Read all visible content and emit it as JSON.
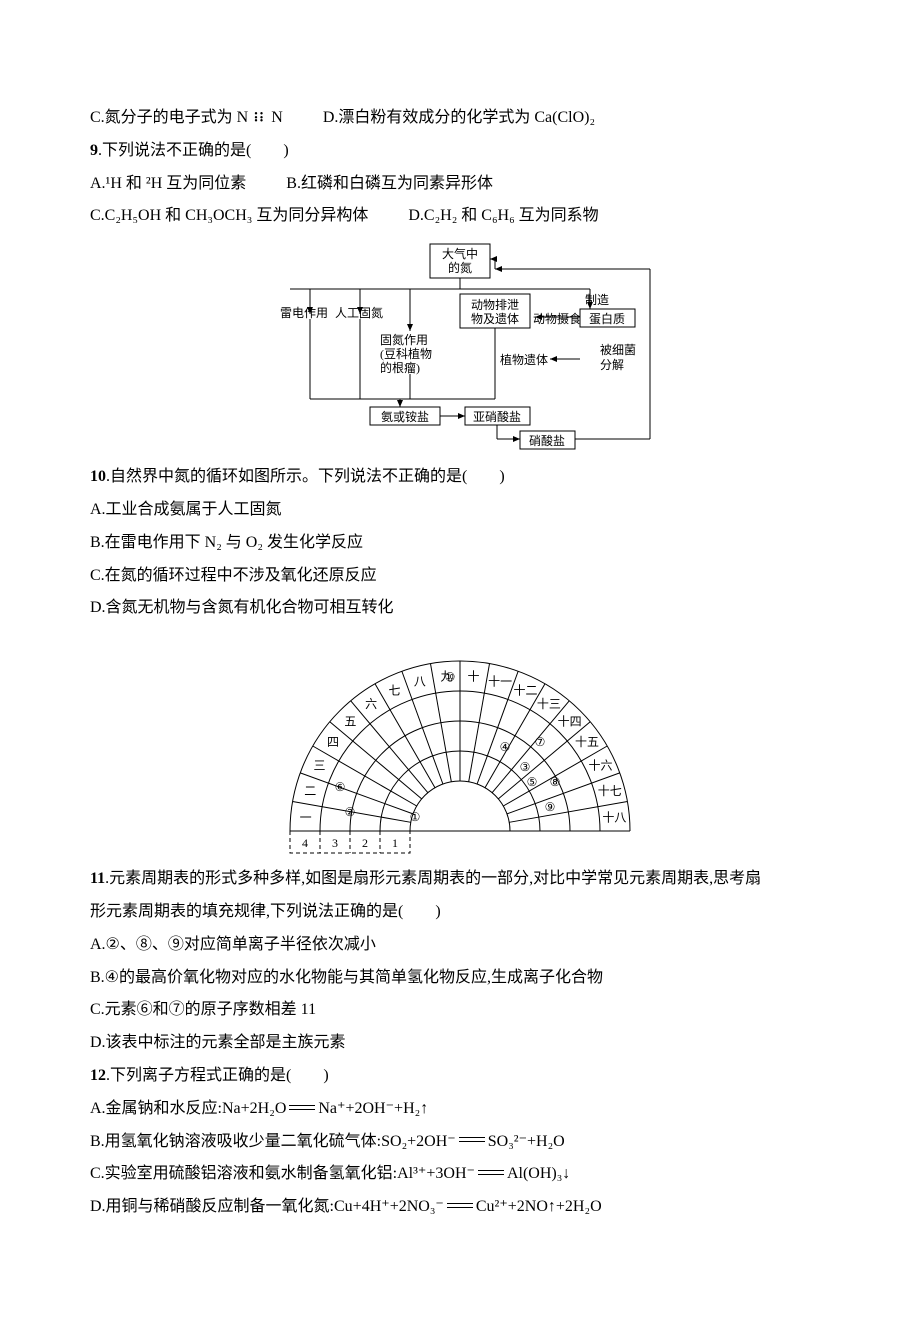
{
  "q8": {
    "c": "C.氮分子的电子式为 N",
    "c_tail": "N",
    "d": "D.漂白粉有效成分的化学式为 Ca(ClO)₂"
  },
  "q9": {
    "stem": "9.下列说法不正确的是(　　)",
    "a": "A.¹H 和 ²H 互为同位素",
    "b": "B.红磷和白磷互为同素异形体",
    "c": "C.C₂H₅OH 和 CH₃OCH₃ 互为同分异构体",
    "d": "D.C₂H₂ 和 C₆H₆ 互为同系物"
  },
  "figure_nitro": {
    "top": "大气中\n的氮",
    "leidian": "雷电作用",
    "rengong": "人工固氮",
    "gudan_line1": "固氮作用",
    "gudan_line2": "(豆科植物",
    "gudan_line3": "的根瘤)",
    "dongwu_paixie": "动物排泄\n物及遗体",
    "dongwu_sheshi": "动物摄食",
    "zhizao": "制造",
    "danbai": "蛋白质",
    "zhiwu": "植物遗体",
    "bei": "被细菌\n分解",
    "an": "氨或铵盐",
    "yaxiao": "亚硝酸盐",
    "xiao": "硝酸盐"
  },
  "q10": {
    "stem": "10.自然界中氮的循环如图所示。下列说法不正确的是(　　)",
    "a": "A.工业合成氨属于人工固氮",
    "b": "B.在雷电作用下 N₂ 与 O₂ 发生化学反应",
    "c": "C.在氮的循环过程中不涉及氧化还原反应",
    "d": "D.含氮无机物与含氮有机化合物可相互转化"
  },
  "figure_fan": {
    "cn_nums": [
      "一",
      "二",
      "三",
      "四",
      "五",
      "六",
      "七",
      "八",
      "九",
      "十",
      "十一",
      "十二",
      "十三",
      "十四",
      "十五",
      "十六",
      "十七",
      "十八"
    ],
    "bottom_left": [
      "4",
      "3",
      "2",
      "1"
    ],
    "circled": [
      "①",
      "②",
      "③",
      "④",
      "⑤",
      "⑥",
      "⑦",
      "⑧",
      "⑨",
      "⑩"
    ]
  },
  "q11": {
    "stem1": "11.元素周期表的形式多种多样,如图是扇形元素周期表的一部分,对比中学常见元素周期表,思考扇",
    "stem2": "形元素周期表的填充规律,下列说法正确的是(　　)",
    "a": "A.②、⑧、⑨对应简单离子半径依次减小",
    "b": "B.④的最高价氧化物对应的水化物能与其简单氢化物反应,生成离子化合物",
    "c": "C.元素⑥和⑦的原子序数相差 11",
    "d": "D.该表中标注的元素全部是主族元素"
  },
  "q12": {
    "stem": "12.下列离子方程式正确的是(　　)",
    "a_pre": "A.金属钠和水反应:Na+2H₂O",
    "a_post": "Na⁺+2OH⁻+H₂↑",
    "b_pre": "B.用氢氧化钠溶液吸收少量二氧化硫气体:SO₂+2OH⁻",
    "b_post": "SO₃²⁻+H₂O",
    "c_pre": "C.实验室用硫酸铝溶液和氨水制备氢氧化铝:Al³⁺+3OH⁻",
    "c_post": "Al(OH)₃↓",
    "d_pre": "D.用铜与稀硝酸反应制备一氧化氮:Cu+4H⁺+2NO₃⁻",
    "d_post": "Cu²⁺+2NO↑+2H₂O"
  }
}
